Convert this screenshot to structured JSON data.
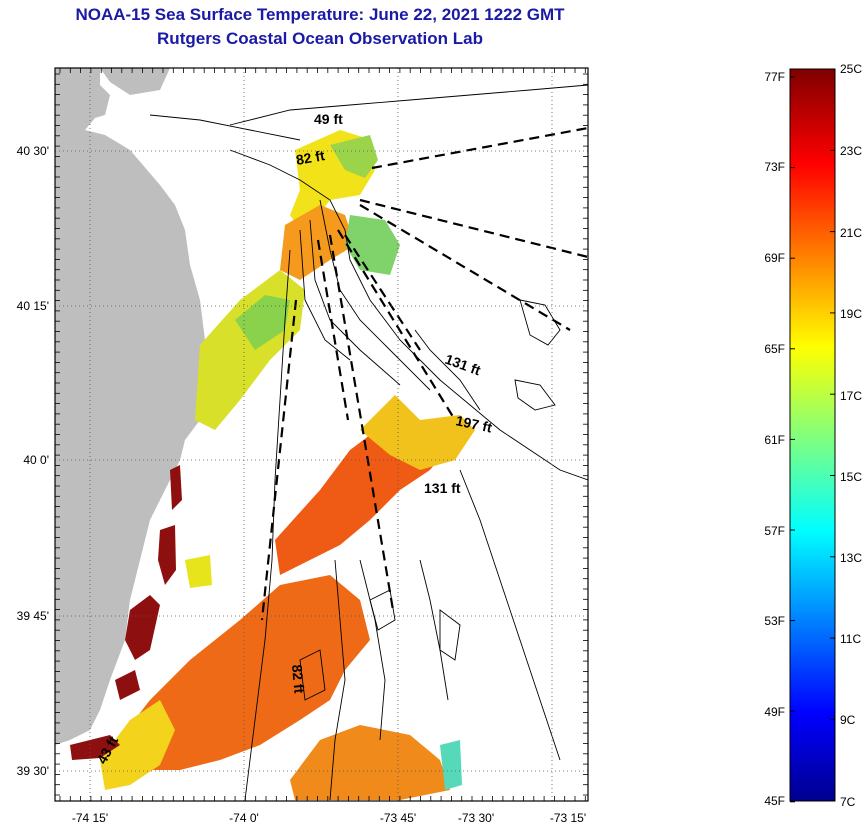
{
  "title": {
    "line1": "NOAA-15 Sea Surface Temperature:  June 22, 2021 1222 GMT",
    "line2": "Rutgers Coastal Ocean Observation Lab"
  },
  "map": {
    "lat_ticks": [
      "40 30'",
      "40 15'",
      "40 0'",
      "39 45'",
      "39 30'"
    ],
    "lon_ticks": [
      "-74 15'",
      "-74 0'",
      "-73 45'",
      "-73 30'",
      "-73 15'"
    ],
    "depth_labels": [
      "49 ft",
      "82 ft",
      "131 ft",
      "197 ft",
      "131 ft",
      "82 ft",
      "43 ft"
    ],
    "land_color": "#bebebe"
  },
  "colorbar": {
    "fahrenheit": [
      "77F",
      "73F",
      "69F",
      "65F",
      "61F",
      "57F",
      "53F",
      "49F",
      "45F"
    ],
    "celsius": [
      "25C",
      "23C",
      "21C",
      "19C",
      "17C",
      "15C",
      "13C",
      "11C",
      "9C",
      "7C"
    ]
  }
}
